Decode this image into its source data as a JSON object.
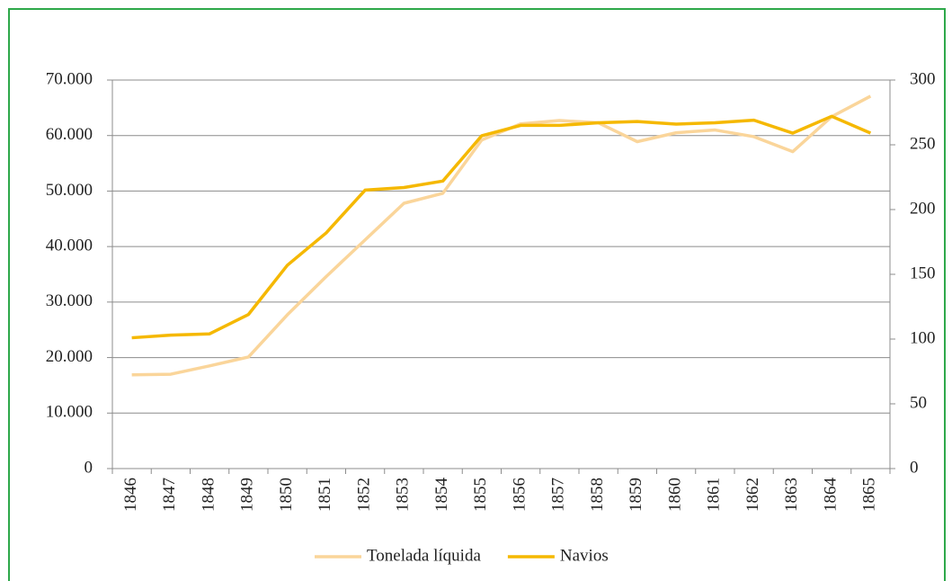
{
  "chart_data": {
    "type": "line",
    "categories": [
      "1846",
      "1847",
      "1848",
      "1849",
      "1850",
      "1851",
      "1852",
      "1853",
      "1854",
      "1855",
      "1856",
      "1857",
      "1858",
      "1859",
      "1860",
      "1861",
      "1862",
      "1863",
      "1864",
      "1865"
    ],
    "series": [
      {
        "name": "Tonelada líquida",
        "color": "#fad59a",
        "values": [
          16900,
          17000,
          18500,
          20100,
          27700,
          34600,
          41200,
          47800,
          49600,
          59200,
          62100,
          62700,
          62300,
          58900,
          60500,
          61000,
          59800,
          57100,
          63400,
          67100
        ]
      },
      {
        "name": "Navios",
        "color": "#f5b800",
        "axis": "y2",
        "values": [
          101,
          103,
          104,
          119,
          157,
          182,
          215,
          217,
          222,
          257,
          265,
          265,
          267,
          268,
          266,
          267,
          269,
          259,
          272,
          259
        ]
      }
    ],
    "ylim": [
      0,
      70000
    ],
    "yticks": [
      0,
      {
        "value": 10000,
        "label": "10.000"
      },
      {
        "value": 20000,
        "label": "20.000"
      },
      {
        "value": 30000,
        "label": "30.000"
      },
      {
        "value": 40000,
        "label": "40.000"
      },
      {
        "value": 50000,
        "label": "50.000"
      },
      {
        "value": 60000,
        "label": "60.000"
      },
      {
        "value": 70000,
        "label": "70.000"
      }
    ],
    "y2lim": [
      0,
      300
    ],
    "y2ticks": [
      0,
      50,
      100,
      150,
      200,
      250,
      300
    ],
    "grid": true,
    "legend": "bottom"
  }
}
